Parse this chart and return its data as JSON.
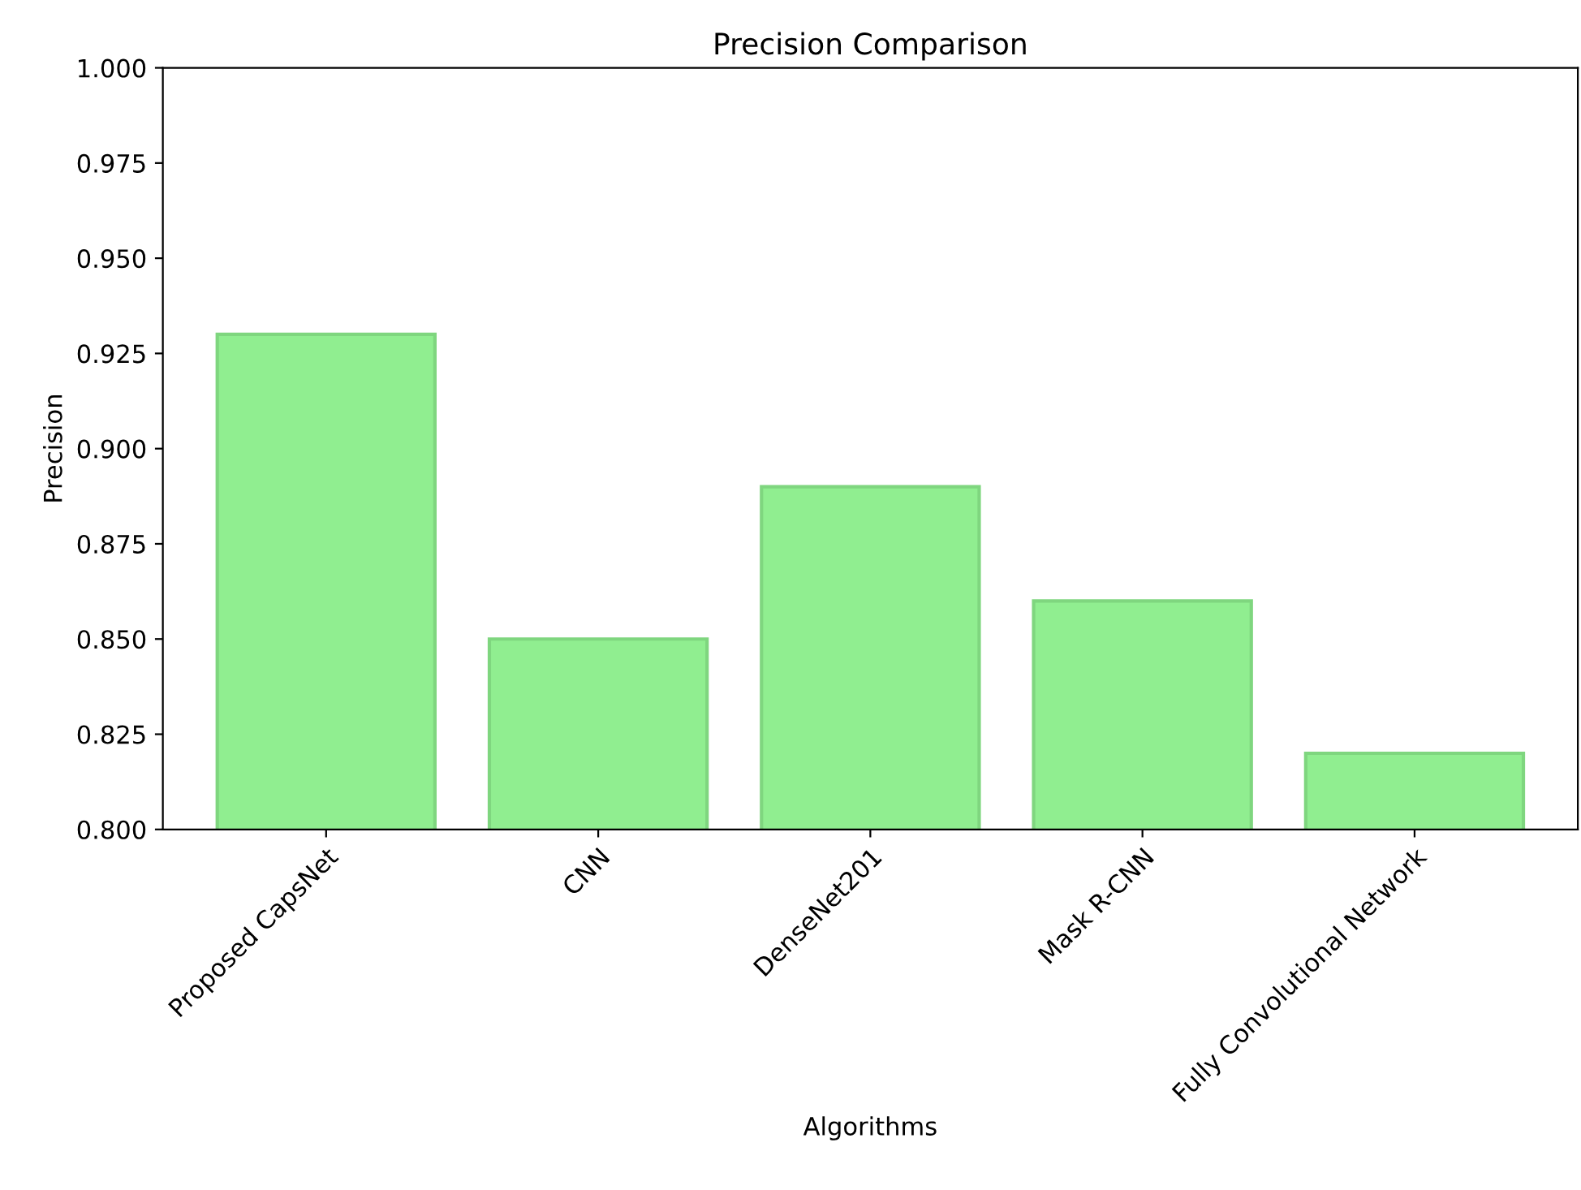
{
  "chart_data": {
    "type": "bar",
    "title": "Precision Comparison",
    "xlabel": "Algorithms",
    "ylabel": "Precision",
    "categories": [
      "Proposed CapsNet",
      "CNN",
      "DenseNet201",
      "Mask R-CNN",
      "Fully Convolutional Network"
    ],
    "values": [
      0.93,
      0.85,
      0.89,
      0.86,
      0.82
    ],
    "color": "#90ee90",
    "ylim": [
      0.8,
      1.0
    ],
    "yticks": [
      {
        "value": 0.8,
        "label": "0.800"
      },
      {
        "value": 0.825,
        "label": "0.825"
      },
      {
        "value": 0.85,
        "label": "0.850"
      },
      {
        "value": 0.875,
        "label": "0.875"
      },
      {
        "value": 0.9,
        "label": "0.900"
      },
      {
        "value": 0.925,
        "label": "0.925"
      },
      {
        "value": 0.95,
        "label": "0.950"
      },
      {
        "value": 0.975,
        "label": "0.975"
      },
      {
        "value": 1.0,
        "label": "1.000"
      }
    ],
    "grid": false,
    "legend": false
  }
}
